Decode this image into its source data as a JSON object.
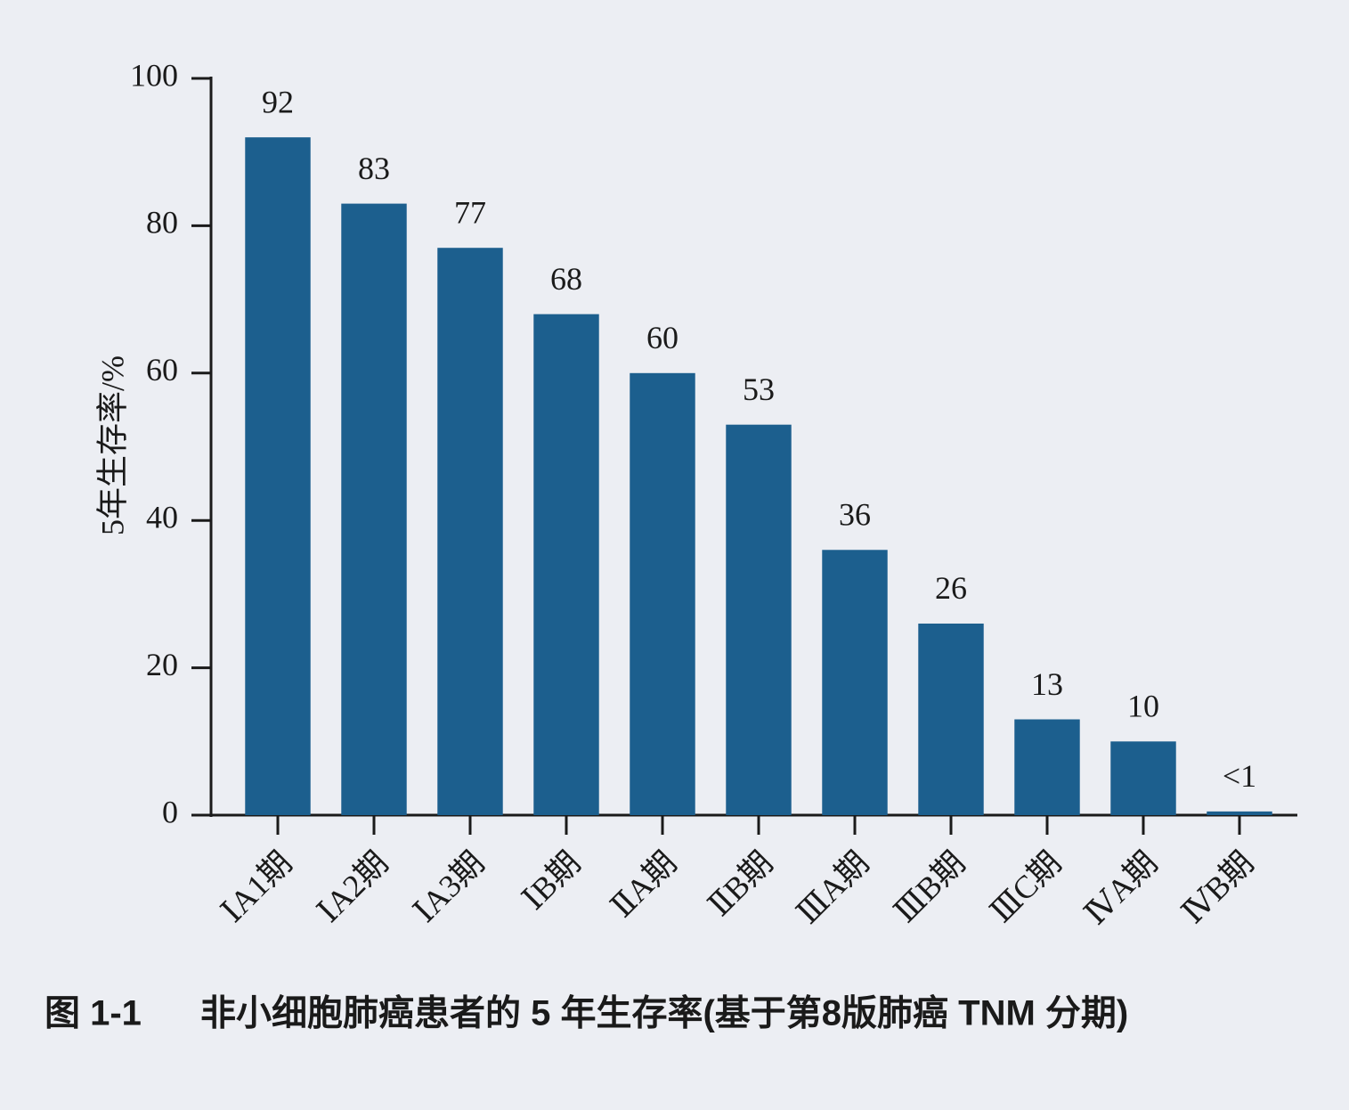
{
  "chart_data": {
    "type": "bar",
    "figure_number": "图 1-1",
    "title": "非小细胞肺癌患者的 5 年生存率(基于第8版肺癌 TNM 分期)",
    "y_label": "5年生存率/%",
    "categories": [
      "ⅠA1期",
      "ⅠA2期",
      "ⅠA3期",
      "ⅠB期",
      "ⅡA期",
      "ⅡB期",
      "ⅢA期",
      "ⅢB期",
      "ⅢC期",
      "ⅣA期",
      "ⅣB期"
    ],
    "values": [
      92,
      83,
      77,
      68,
      60,
      53,
      36,
      26,
      13,
      10,
      0.5
    ],
    "value_labels": [
      "92",
      "83",
      "77",
      "68",
      "60",
      "53",
      "36",
      "26",
      "13",
      "10",
      "<1"
    ],
    "color": "#1c5f8e",
    "ylim": [
      0,
      100
    ],
    "yticks": [
      0,
      20,
      40,
      60,
      80,
      100
    ],
    "grid": false
  }
}
